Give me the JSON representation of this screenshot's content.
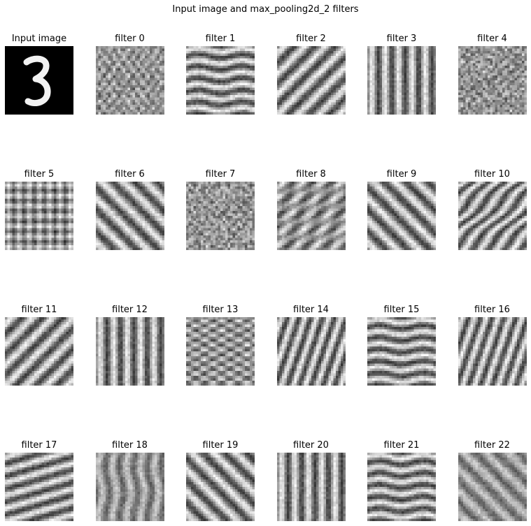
{
  "figure": {
    "title": "Input image and max_pooling2d_2 filters"
  },
  "panels": [
    {
      "label": "Input image",
      "icon": "digit-3-image",
      "kind": "digit"
    },
    {
      "label": "filter 0",
      "kind": "filter",
      "pattern": "noise-horizontal"
    },
    {
      "label": "filter 1",
      "kind": "filter",
      "pattern": "horizontal-wavy"
    },
    {
      "label": "filter 2",
      "kind": "filter",
      "pattern": "diagonal-up"
    },
    {
      "label": "filter 3",
      "kind": "filter",
      "pattern": "vertical"
    },
    {
      "label": "filter 4",
      "kind": "filter",
      "pattern": "noise-grid"
    },
    {
      "label": "filter 5",
      "kind": "filter",
      "pattern": "grid"
    },
    {
      "label": "filter 6",
      "kind": "filter",
      "pattern": "diagonal-down"
    },
    {
      "label": "filter 7",
      "kind": "filter",
      "pattern": "noise-grid"
    },
    {
      "label": "filter 8",
      "kind": "filter",
      "pattern": "diagonal-up-broken"
    },
    {
      "label": "filter 9",
      "kind": "filter",
      "pattern": "diagonal-down"
    },
    {
      "label": "filter 10",
      "kind": "filter",
      "pattern": "diagonal-up-dense"
    },
    {
      "label": "filter 11",
      "kind": "filter",
      "pattern": "diagonal-up"
    },
    {
      "label": "filter 12",
      "kind": "filter",
      "pattern": "vertical"
    },
    {
      "label": "filter 13",
      "kind": "filter",
      "pattern": "horizontal-dense"
    },
    {
      "label": "filter 14",
      "kind": "filter",
      "pattern": "steep-up"
    },
    {
      "label": "filter 15",
      "kind": "filter",
      "pattern": "horizontal-wavy"
    },
    {
      "label": "filter 16",
      "kind": "filter",
      "pattern": "steep-up"
    },
    {
      "label": "filter 17",
      "kind": "filter",
      "pattern": "shallow-up"
    },
    {
      "label": "filter 18",
      "kind": "filter",
      "pattern": "vertical-soft"
    },
    {
      "label": "filter 19",
      "kind": "filter",
      "pattern": "diagonal-down"
    },
    {
      "label": "filter 20",
      "kind": "filter",
      "pattern": "vertical"
    },
    {
      "label": "filter 21",
      "kind": "filter",
      "pattern": "horizontal-wavy"
    },
    {
      "label": "filter 22",
      "kind": "filter",
      "pattern": "diagonal-down-soft"
    }
  ]
}
